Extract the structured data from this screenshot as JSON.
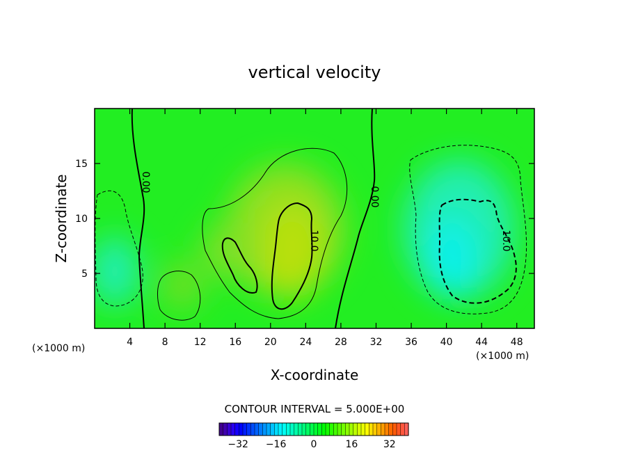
{
  "chart_data": {
    "type": "heatmap",
    "title": "vertical velocity",
    "xlabel": "X-coordinate",
    "ylabel": "Z-coordinate",
    "x_unit": "(×1000 m)",
    "x_ticks": [
      4,
      8,
      12,
      16,
      20,
      24,
      28,
      32,
      36,
      40,
      44,
      48
    ],
    "y_ticks": [
      5,
      10,
      15
    ],
    "xlim": [
      0,
      50
    ],
    "ylim": [
      0,
      20
    ],
    "grid": false,
    "contour_interval_label": "CONTOUR INTERVAL = 5.000E+00",
    "contour_labels": [
      {
        "text": "0.00",
        "x": 5.0,
        "y": 13.2
      },
      {
        "text": "0.00",
        "x": 31.5,
        "y": 12.0
      },
      {
        "text": "10.0",
        "x": 24.6,
        "y": 8.5
      },
      {
        "text": "10.0",
        "x": 46.6,
        "y": 8.5
      }
    ],
    "colorbar": {
      "range": [
        -40,
        40
      ],
      "ticks": [
        -32,
        -16,
        0,
        16,
        32
      ]
    },
    "features": [
      {
        "kind": "updraft",
        "peak_value": 15,
        "x": 21.5,
        "y": 7.5
      },
      {
        "kind": "updraft",
        "peak_value": 8,
        "x": 16,
        "y": 7
      },
      {
        "kind": "updraft",
        "peak_value": 5,
        "x": 9.8,
        "y": 3.5
      },
      {
        "kind": "downdraft",
        "peak_value": -15,
        "x": 41.5,
        "y": 5
      },
      {
        "kind": "downdraft",
        "peak_value": -7,
        "x": 2,
        "y": 4.5
      }
    ]
  }
}
